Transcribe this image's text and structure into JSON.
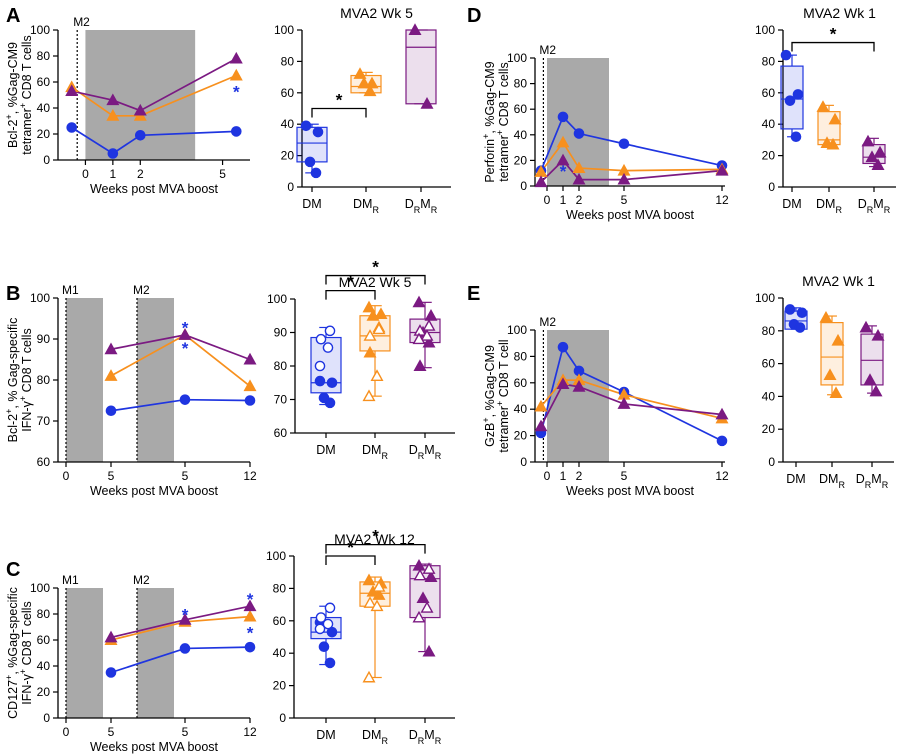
{
  "colors": {
    "DM": "#1f35e0",
    "DMR": "#f7901e",
    "DRMR": "#7b1a82",
    "shade": "#a9a9a9"
  },
  "box_categories": [
    {
      "main": "DM",
      "sub": "",
      "main2": "",
      "sub2": ""
    },
    {
      "main": "DM",
      "sub": "R",
      "main2": "",
      "sub2": ""
    },
    {
      "main": "D",
      "sub": "R",
      "main2": "M",
      "sub2": "R"
    }
  ],
  "chart_data": [
    {
      "panel": "A",
      "type": "line",
      "ylabel_lines": [
        [
          {
            "t": "Bcl-2"
          },
          {
            "t": "+",
            "sup": true
          },
          {
            "t": ", %Gag-CM9"
          }
        ],
        [
          {
            "t": "tetramer"
          },
          {
            "t": "+",
            "sup": true
          },
          {
            "t": " CD8  T cells"
          }
        ]
      ],
      "xlabel": "Weeks post MVA boost",
      "x_ticks": [
        0,
        1,
        2,
        5
      ],
      "ylim": [
        0,
        100
      ],
      "y_ticks": [
        0,
        20,
        40,
        60,
        80,
        100
      ],
      "event_labels": [
        "M2"
      ],
      "series": [
        {
          "group": "DM",
          "x": [
            -0.5,
            1,
            2,
            5.5
          ],
          "y": [
            25,
            5,
            19,
            22
          ]
        },
        {
          "group": "DMR",
          "x": [
            -0.5,
            1,
            2,
            5.5
          ],
          "y": [
            56,
            34,
            34,
            65
          ]
        },
        {
          "group": "DRMR",
          "x": [
            -0.5,
            1,
            2,
            5.5
          ],
          "y": [
            53,
            46,
            38,
            78
          ]
        }
      ],
      "stars": [
        {
          "x": 5.5,
          "y": 55,
          "color": "DM",
          "text": "*"
        }
      ]
    },
    {
      "panel": "A",
      "type": "box",
      "title": "MVA2 Wk 5",
      "ylim": [
        0,
        100
      ],
      "y_ticks": [
        0,
        20,
        40,
        60,
        80,
        100
      ],
      "groups": [
        {
          "group": "DM",
          "min": 9,
          "q1": 16,
          "median": 28,
          "q3": 38,
          "max": 40,
          "points": [
            39,
            35,
            16,
            9
          ]
        },
        {
          "group": "DMR",
          "min": 60,
          "q1": 60,
          "median": 64,
          "q3": 71,
          "max": 73,
          "points": [
            72,
            66,
            66,
            61
          ]
        },
        {
          "group": "DRMR",
          "min": 53,
          "q1": 53,
          "median": 89,
          "q3": 100,
          "max": 100,
          "points": [
            100,
            53
          ]
        }
      ],
      "brackets": [
        {
          "from": 0,
          "to": 1,
          "y": 50,
          "text": "*"
        }
      ]
    },
    {
      "panel": "B",
      "type": "line",
      "ylabel_lines": [
        [
          {
            "t": "Bcl-2"
          },
          {
            "t": "+",
            "sup": true
          },
          {
            "t": ", % Gag-specific"
          }
        ],
        [
          {
            "t": "IFN-γ"
          },
          {
            "t": "+",
            "sup": true
          },
          {
            "t": " CD8 T cells"
          }
        ]
      ],
      "xlabel": "Weeks post MVA boost",
      "x_ticks": [
        "0",
        "5",
        "5",
        "12"
      ],
      "ylim": [
        60,
        100
      ],
      "y_ticks": [
        60,
        70,
        80,
        90,
        100
      ],
      "event_labels": [
        "M1",
        "M2"
      ],
      "series": [
        {
          "group": "DM",
          "x": [
            "5",
            "5",
            "12"
          ],
          "y": [
            72.5,
            75.2,
            75
          ]
        },
        {
          "group": "DMR",
          "x": [
            "5",
            "5",
            "12"
          ],
          "y": [
            81,
            91,
            78.5
          ]
        },
        {
          "group": "DRMR",
          "x": [
            "5",
            "5",
            "12"
          ],
          "y": [
            87.5,
            91,
            85
          ]
        }
      ],
      "stars": [
        {
          "x": "5",
          "y": 93.5,
          "color": "DM",
          "text": "*"
        },
        {
          "x": "5",
          "y": 88.5,
          "color": "DM",
          "text": "*"
        }
      ]
    },
    {
      "panel": "B",
      "type": "box",
      "title": "MVA2 Wk 5",
      "ylim": [
        60,
        100
      ],
      "y_ticks": [
        60,
        70,
        80,
        90,
        100
      ],
      "groups": [
        {
          "group": "DM",
          "min": 68.5,
          "q1": 72,
          "median": 75,
          "q3": 88.5,
          "max": 91.5,
          "points": [
            75.5,
            75,
            70.5,
            69
          ],
          "open_points": [
            90.5,
            88,
            85.5,
            80
          ]
        },
        {
          "group": "DMR",
          "min": 71,
          "q1": 84.5,
          "median": 89,
          "q3": 95,
          "max": 98,
          "points": [
            97.5,
            95.5,
            95,
            91.5,
            84
          ],
          "open_points": [
            91,
            89,
            77,
            71
          ]
        },
        {
          "group": "DRMR",
          "min": 79.5,
          "q1": 87,
          "median": 90,
          "q3": 94,
          "max": 99,
          "points": [
            99,
            95,
            90,
            87,
            80
          ],
          "open_points": [
            92,
            90.5,
            89,
            88
          ]
        }
      ],
      "brackets": [
        {
          "from": 0,
          "to": 1,
          "y": 102.5,
          "text": "*"
        },
        {
          "from": 0,
          "to": 2,
          "y": 107,
          "text": "*"
        }
      ]
    },
    {
      "panel": "C",
      "type": "line",
      "ylabel_lines": [
        [
          {
            "t": "CD127"
          },
          {
            "t": "+",
            "sup": true
          },
          {
            "t": ", %Gag-specific"
          }
        ],
        [
          {
            "t": "IFN-γ"
          },
          {
            "t": "+",
            "sup": true
          },
          {
            "t": " CD8 T cells"
          }
        ]
      ],
      "xlabel": "Weeks post MVA boost",
      "x_ticks": [
        "0",
        "5",
        "5",
        "12"
      ],
      "ylim": [
        0,
        100
      ],
      "y_ticks": [
        0,
        20,
        40,
        60,
        80,
        100
      ],
      "event_labels": [
        "M1",
        "M2"
      ],
      "series": [
        {
          "group": "DM",
          "x": [
            "5",
            "5",
            "12"
          ],
          "y": [
            35,
            53.5,
            54.5
          ]
        },
        {
          "group": "DMR",
          "x": [
            "5",
            "5",
            "12"
          ],
          "y": [
            60,
            74,
            78
          ]
        },
        {
          "group": "DRMR",
          "x": [
            "5",
            "5",
            "12"
          ],
          "y": [
            62,
            75.5,
            86
          ]
        }
      ],
      "stars": [
        {
          "x": "5",
          "y": 82,
          "color": "DM",
          "text": "*"
        },
        {
          "x": "12",
          "y": 94,
          "color": "DM",
          "text": "*"
        },
        {
          "x": "12",
          "y": 68,
          "color": "DM",
          "text": "*"
        }
      ]
    },
    {
      "panel": "C",
      "type": "box",
      "title": "MVA2 Wk 12",
      "ylim": [
        0,
        100
      ],
      "y_ticks": [
        0,
        20,
        40,
        60,
        80,
        100
      ],
      "groups": [
        {
          "group": "DM",
          "min": 33,
          "q1": 49,
          "median": 53,
          "q3": 62,
          "max": 69,
          "points": [
            59,
            53,
            44,
            34
          ],
          "open_points": [
            68,
            62,
            58,
            55
          ]
        },
        {
          "group": "DMR",
          "min": 25,
          "q1": 69,
          "median": 77,
          "q3": 84,
          "max": 87,
          "points": [
            85,
            83,
            78,
            76
          ],
          "open_points": [
            81,
            71,
            69,
            25
          ]
        },
        {
          "group": "DRMR",
          "min": 41,
          "q1": 62,
          "median": 86,
          "q3": 94,
          "max": 95,
          "points": [
            94,
            87,
            74,
            41
          ],
          "open_points": [
            92,
            88,
            68,
            62
          ]
        }
      ],
      "brackets": [
        {
          "from": 0,
          "to": 1,
          "y": 100,
          "text": "*"
        },
        {
          "from": 0,
          "to": 2,
          "y": 107,
          "text": "*"
        }
      ]
    },
    {
      "panel": "D",
      "type": "line",
      "ylabel_lines": [
        [
          {
            "t": "Perforin"
          },
          {
            "t": "+",
            "sup": true
          },
          {
            "t": ", %Gag-CM9"
          }
        ],
        [
          {
            "t": "tetramer"
          },
          {
            "t": "+",
            "sup": true
          },
          {
            "t": " CD8  T cells"
          }
        ]
      ],
      "xlabel": "Weeks post MVA boost",
      "x_ticks": [
        0,
        1,
        2,
        5,
        12
      ],
      "ylim": [
        0,
        100
      ],
      "y_ticks": [
        0,
        20,
        40,
        60,
        80,
        100
      ],
      "event_labels": [
        "M2"
      ],
      "series": [
        {
          "group": "DM",
          "x": [
            -0.5,
            1,
            2,
            5,
            12
          ],
          "y": [
            12,
            54,
            41,
            33,
            16
          ]
        },
        {
          "group": "DMR",
          "x": [
            -0.5,
            1,
            2,
            5,
            12
          ],
          "y": [
            11,
            34,
            14,
            12,
            13
          ]
        },
        {
          "group": "DRMR",
          "x": [
            -0.5,
            1,
            2,
            5,
            12
          ],
          "y": [
            3,
            20,
            5,
            5,
            12
          ]
        }
      ],
      "stars": [
        {
          "x": 1,
          "y": 14,
          "color": "DM",
          "text": "*"
        }
      ]
    },
    {
      "panel": "D",
      "type": "box",
      "title": "MVA2 Wk 1",
      "ylim": [
        0,
        100
      ],
      "y_ticks": [
        0,
        20,
        40,
        60,
        80,
        100
      ],
      "groups": [
        {
          "group": "DM",
          "min": 32,
          "q1": 37,
          "median": 56,
          "q3": 77,
          "max": 84,
          "points": [
            84,
            59,
            55,
            32
          ]
        },
        {
          "group": "DMR",
          "min": 26,
          "q1": 27,
          "median": 30,
          "q3": 48,
          "max": 52,
          "points": [
            51,
            43,
            28,
            27
          ]
        },
        {
          "group": "DRMR",
          "min": 13,
          "q1": 15,
          "median": 19,
          "q3": 27,
          "max": 31,
          "points": [
            29,
            22,
            19,
            14
          ]
        }
      ],
      "brackets": [
        {
          "from": 0,
          "to": 2,
          "y": 92,
          "text": "*"
        }
      ]
    },
    {
      "panel": "E",
      "type": "line",
      "ylabel_lines": [
        [
          {
            "t": "GzB"
          },
          {
            "t": "+",
            "sup": true
          },
          {
            "t": ", %Gag-CM9"
          }
        ],
        [
          {
            "t": "tetramer"
          },
          {
            "t": "+",
            "sup": true
          },
          {
            "t": " CD8  T cell"
          }
        ]
      ],
      "xlabel": "Weeks post MVA boost",
      "x_ticks": [
        0,
        1,
        2,
        5,
        12
      ],
      "ylim": [
        0,
        100
      ],
      "y_ticks": [
        0,
        20,
        40,
        60,
        80,
        100
      ],
      "event_labels": [
        "M2"
      ],
      "series": [
        {
          "group": "DM",
          "x": [
            -0.5,
            1,
            2,
            5,
            12
          ],
          "y": [
            22,
            87,
            69,
            53,
            16
          ]
        },
        {
          "group": "DMR",
          "x": [
            -0.5,
            1,
            2,
            5,
            12
          ],
          "y": [
            42,
            62,
            62,
            51,
            33
          ]
        },
        {
          "group": "DRMR",
          "x": [
            -0.5,
            1,
            2,
            5,
            12
          ],
          "y": [
            27,
            59,
            57,
            44,
            36
          ]
        }
      ],
      "stars": []
    },
    {
      "panel": "E",
      "type": "box",
      "title": "MVA2 Wk 1",
      "ylim": [
        0,
        100
      ],
      "y_ticks": [
        0,
        20,
        40,
        60,
        80,
        100
      ],
      "groups": [
        {
          "group": "DM",
          "min": 81,
          "q1": 81,
          "median": 86,
          "q3": 92,
          "max": 94,
          "points": [
            93,
            91,
            84,
            82
          ]
        },
        {
          "group": "DMR",
          "min": 41,
          "q1": 47,
          "median": 64,
          "q3": 85,
          "max": 89,
          "points": [
            88,
            74,
            53,
            42
          ]
        },
        {
          "group": "DRMR",
          "min": 42,
          "q1": 47,
          "median": 62,
          "q3": 78,
          "max": 83,
          "points": [
            82,
            77,
            50,
            43
          ]
        }
      ],
      "brackets": []
    }
  ]
}
